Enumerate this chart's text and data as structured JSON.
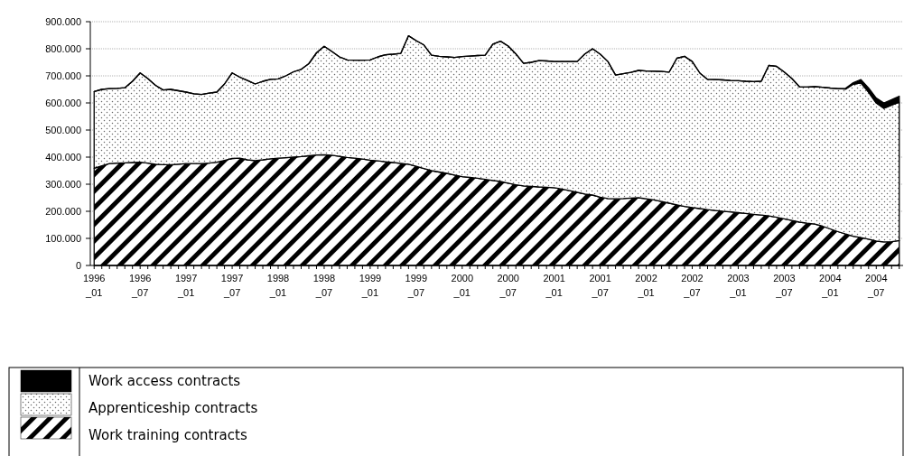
{
  "chart_data": {
    "type": "area",
    "stacked": true,
    "categories": [
      "1996_01",
      null,
      null,
      null,
      null,
      null,
      "1996_07",
      null,
      null,
      null,
      null,
      null,
      "1997_01",
      null,
      null,
      null,
      null,
      null,
      "1997_07",
      null,
      null,
      null,
      null,
      null,
      "1998_01",
      null,
      null,
      null,
      null,
      null,
      "1998_07",
      null,
      null,
      null,
      null,
      null,
      "1999_01",
      null,
      null,
      null,
      null,
      null,
      "1999_07",
      null,
      null,
      null,
      null,
      null,
      "2000_01",
      null,
      null,
      null,
      null,
      null,
      "2000_07",
      null,
      null,
      null,
      null,
      null,
      "2001_01",
      null,
      null,
      null,
      null,
      null,
      "2001_07",
      null,
      null,
      null,
      null,
      null,
      "2002_01",
      null,
      null,
      null,
      null,
      null,
      "2002_07",
      null,
      null,
      null,
      null,
      null,
      "2003_01",
      null,
      null,
      null,
      null,
      null,
      "2003_07",
      null,
      null,
      null,
      null,
      null,
      "2004_01",
      null,
      null,
      null,
      null,
      null,
      "2004_07",
      null,
      null,
      null
    ],
    "series": [
      {
        "name": "Work training contracts",
        "color": "#000000",
        "values": [
          359000,
          368000,
          376000,
          378000,
          379000,
          380000,
          381000,
          378000,
          374000,
          372000,
          372000,
          374000,
          376000,
          376000,
          376000,
          378000,
          381000,
          388000,
          395000,
          396000,
          390000,
          387000,
          390000,
          394000,
          396000,
          398000,
          400000,
          402000,
          405000,
          408000,
          409000,
          407000,
          403000,
          399000,
          396000,
          393000,
          389000,
          386000,
          383000,
          380000,
          377000,
          374000,
          366000,
          358000,
          350000,
          345000,
          340000,
          334000,
          328000,
          325000,
          322000,
          318000,
          314000,
          310000,
          304000,
          298000,
          294000,
          292000,
          290000,
          289000,
          287000,
          282000,
          276000,
          270000,
          264000,
          260000,
          252000,
          247000,
          246000,
          247000,
          249000,
          250000,
          246000,
          242000,
          236000,
          230000,
          224000,
          218000,
          214000,
          210000,
          206000,
          203000,
          200000,
          198000,
          195000,
          192000,
          189000,
          186000,
          183000,
          178000,
          172000,
          166000,
          160000,
          156000,
          153000,
          145000,
          135000,
          125000,
          116000,
          108000,
          103000,
          97000,
          90000,
          87000,
          88000,
          92000
        ]
      },
      {
        "name": "Apprenticeship contracts",
        "color": "#000000",
        "values": [
          283000,
          282000,
          277000,
          276000,
          277000,
          300000,
          330000,
          312000,
          291000,
          276000,
          278000,
          271000,
          264000,
          258000,
          255000,
          258000,
          259000,
          282000,
          316000,
          299000,
          293000,
          283000,
          290000,
          293000,
          293000,
          302000,
          315000,
          322000,
          340000,
          377000,
          400000,
          383000,
          367000,
          360000,
          362000,
          365000,
          370000,
          384000,
          395000,
          400000,
          406000,
          474000,
          464000,
          456000,
          426000,
          427000,
          430000,
          434000,
          443000,
          448000,
          453000,
          458000,
          503000,
          518000,
          506000,
          483000,
          452000,
          458000,
          466000,
          466000,
          466000,
          471000,
          477000,
          483000,
          517000,
          540000,
          528000,
          506000,
          457000,
          461000,
          464000,
          470000,
          472000,
          475000,
          480000,
          484000,
          541000,
          554000,
          539000,
          500000,
          481000,
          483000,
          485000,
          485000,
          487000,
          488000,
          490000,
          494000,
          556000,
          557000,
          542000,
          524000,
          499000,
          503000,
          507000,
          513000,
          520000,
          528000,
          535000,
          561000,
          571000,
          543000,
          510000,
          493000,
          504000,
          511000
        ]
      },
      {
        "name": "Work access contracts",
        "color": "#000000",
        "values": [
          0,
          0,
          0,
          0,
          0,
          0,
          0,
          0,
          0,
          0,
          0,
          0,
          0,
          0,
          0,
          0,
          0,
          0,
          0,
          0,
          0,
          0,
          0,
          0,
          0,
          0,
          0,
          0,
          0,
          0,
          0,
          0,
          0,
          0,
          0,
          0,
          0,
          0,
          0,
          0,
          0,
          0,
          0,
          0,
          0,
          0,
          0,
          0,
          0,
          0,
          0,
          0,
          0,
          0,
          0,
          0,
          0,
          0,
          0,
          0,
          0,
          0,
          0,
          0,
          0,
          0,
          0,
          0,
          0,
          0,
          0,
          0,
          0,
          0,
          0,
          0,
          0,
          0,
          0,
          0,
          0,
          0,
          0,
          0,
          0,
          0,
          0,
          0,
          0,
          0,
          0,
          0,
          0,
          0,
          0,
          0,
          0,
          0,
          3000,
          6000,
          12000,
          15000,
          18000,
          20000,
          20000,
          22000
        ]
      }
    ],
    "ylim": [
      0,
      900000
    ],
    "yticks": [
      {
        "value": 0,
        "label": "0"
      },
      {
        "value": 100000,
        "label": "100.000"
      },
      {
        "value": 200000,
        "label": "200.000"
      },
      {
        "value": 300000,
        "label": "300.000"
      },
      {
        "value": 400000,
        "label": "400.000"
      },
      {
        "value": 500000,
        "label": "500.000"
      },
      {
        "value": 600000,
        "label": "600.000"
      },
      {
        "value": 700000,
        "label": "700.000"
      },
      {
        "value": 800000,
        "label": "800.000"
      },
      {
        "value": 900000,
        "label": "900.000"
      }
    ],
    "grid": "y",
    "legend": "bottom left"
  }
}
